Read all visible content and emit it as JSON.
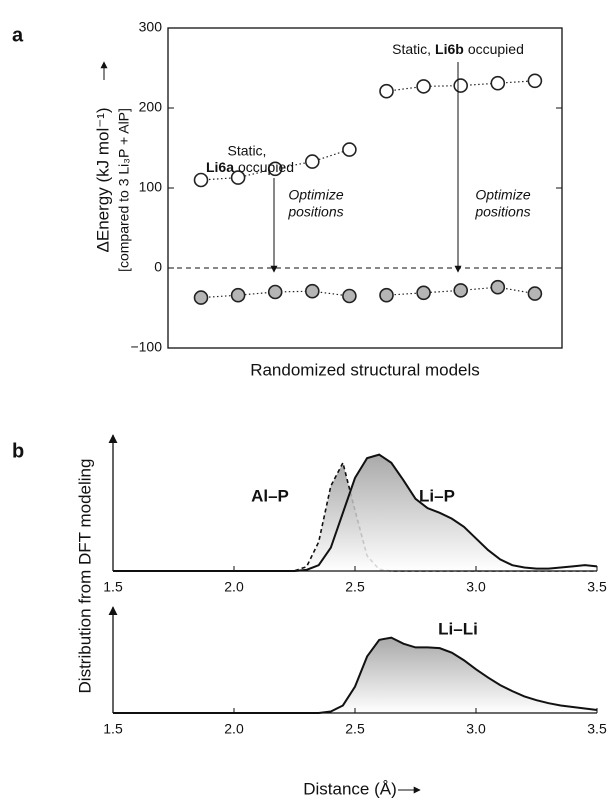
{
  "chart_data": [
    {
      "type": "scatter",
      "panel": "a",
      "ylabel": "ΔEnergy (kJ mol⁻¹)",
      "ylabel2": "[compared to 3 Li₃P + AlP]",
      "xlabel": "Randomized structural models",
      "categories": [
        null,
        null,
        null,
        null,
        null,
        null,
        null,
        null,
        null,
        null
      ],
      "series": [
        {
          "color": "#ffffff",
          "values": [
            110,
            113,
            124,
            133,
            148,
            null,
            null,
            null,
            null,
            null
          ]
        },
        {
          "color": "#ffffff",
          "values": [
            null,
            null,
            null,
            null,
            null,
            221,
            227,
            228,
            231,
            234
          ]
        },
        {
          "color": "#b5b5b5",
          "values": [
            -37,
            -34,
            -30,
            -29,
            -35,
            null,
            null,
            null,
            null,
            null
          ]
        },
        {
          "color": "#b5b5b5",
          "values": [
            null,
            null,
            null,
            null,
            null,
            -34,
            -31,
            -28,
            -24,
            -32
          ]
        }
      ],
      "hline": 0,
      "ylim": [
        -100,
        300
      ],
      "yticks": [
        {
          "value": -100,
          "label": "−100"
        },
        0,
        100,
        200,
        300
      ],
      "annotations": [
        {
          "parts": [
            "Static,",
            "Li6a",
            "occupied"
          ]
        },
        {
          "parts": [
            "Static,",
            "Li6b",
            "occupied"
          ]
        },
        {
          "lines": [
            "Optimize",
            "positions"
          ]
        },
        {
          "lines": [
            "Optimize",
            "positions"
          ]
        }
      ]
    },
    {
      "type": "area",
      "panel": "b",
      "ylabel": "Distribution from DFT modeling",
      "x": [
        1.5,
        2.2,
        2.25,
        2.3,
        2.35,
        2.4,
        2.45,
        2.5,
        2.55,
        2.6,
        2.65,
        2.7,
        2.75,
        2.8,
        2.85,
        2.9,
        2.95,
        3.0,
        3.05,
        3.1,
        3.15,
        3.2,
        3.25,
        3.3,
        3.35,
        3.4,
        3.45,
        3.5
      ],
      "series": [
        {
          "name": "Al–P",
          "style": "dashed",
          "values": [
            0,
            0,
            0.002,
            0.037,
            0.25,
            0.73,
            0.93,
            0.52,
            0.13,
            0.014,
            0,
            0,
            0,
            0,
            0,
            0,
            0,
            0,
            0,
            0,
            0,
            0,
            0,
            0,
            0,
            0,
            0,
            0
          ]
        },
        {
          "name": "Li–P",
          "style": "solid",
          "values": [
            0,
            0,
            0,
            0.01,
            0.05,
            0.2,
            0.5,
            0.8,
            0.97,
            1.0,
            0.93,
            0.78,
            0.62,
            0.54,
            0.5,
            0.45,
            0.38,
            0.28,
            0.18,
            0.1,
            0.05,
            0.03,
            0.02,
            0.02,
            0.03,
            0.04,
            0.05,
            0.04
          ]
        }
      ],
      "xlim": [
        1.5,
        3.5
      ],
      "ylim": [
        0,
        1.1
      ],
      "xticks": [
        1.5,
        {
          "value": 2.0,
          "label": "2.0"
        },
        2.5,
        {
          "value": 3.0,
          "label": "3.0"
        },
        3.5
      ]
    },
    {
      "type": "area",
      "xlabel": "Distance (Å)",
      "x": [
        1.5,
        2.2,
        2.25,
        2.3,
        2.35,
        2.4,
        2.45,
        2.5,
        2.55,
        2.6,
        2.65,
        2.7,
        2.75,
        2.8,
        2.85,
        2.9,
        2.95,
        3.0,
        3.05,
        3.1,
        3.15,
        3.2,
        3.25,
        3.3,
        3.35,
        3.4,
        3.45,
        3.5
      ],
      "series": [
        {
          "name": "Li–Li",
          "style": "solid",
          "values": [
            0,
            0,
            0,
            0,
            0,
            0.02,
            0.1,
            0.35,
            0.75,
            0.97,
            1.0,
            0.92,
            0.87,
            0.87,
            0.86,
            0.8,
            0.7,
            0.58,
            0.47,
            0.37,
            0.29,
            0.22,
            0.17,
            0.13,
            0.1,
            0.08,
            0.06,
            0.04
          ]
        }
      ],
      "xlim": [
        1.5,
        3.5
      ],
      "ylim": [
        0,
        1.3
      ],
      "xticks": [
        1.5,
        {
          "value": 2.0,
          "label": "2.0"
        },
        2.5,
        {
          "value": 3.0,
          "label": "3.0"
        },
        3.5
      ]
    }
  ]
}
